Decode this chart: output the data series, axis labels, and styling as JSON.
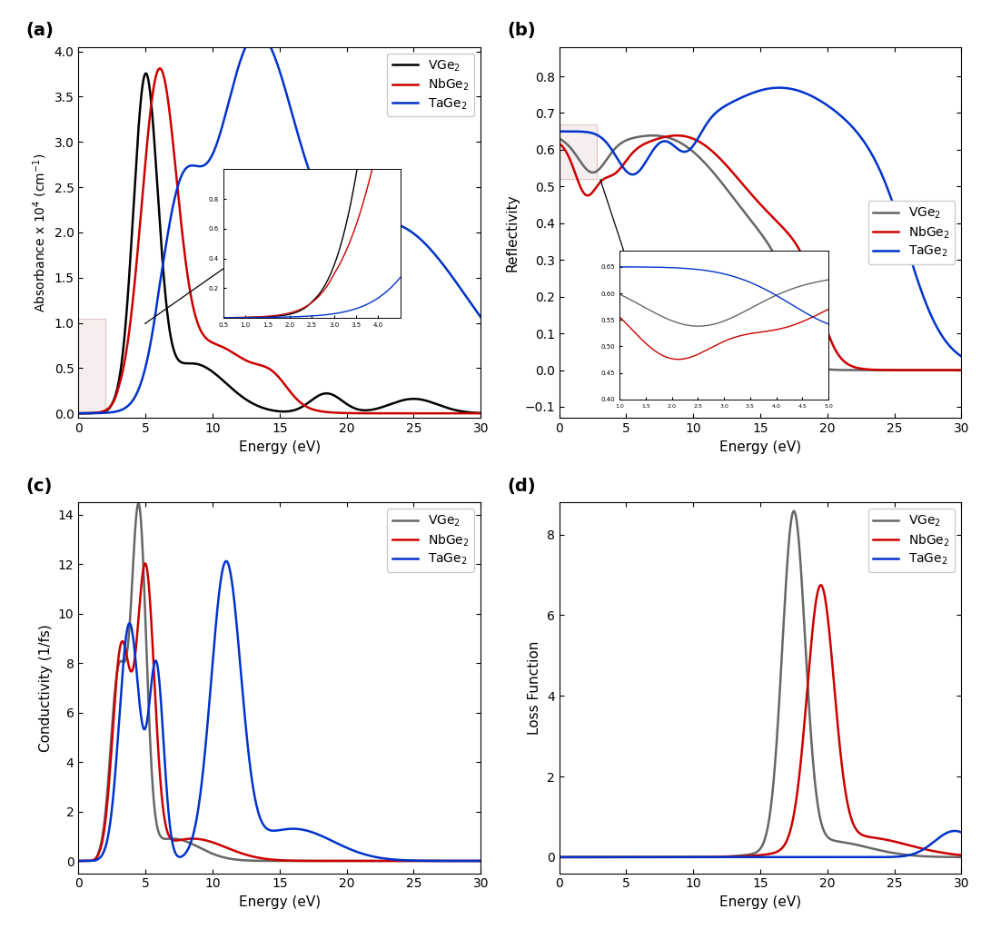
{
  "colors": {
    "V_a": "#000000",
    "Nb_a": "#cc0000",
    "Ta_a": "#0033cc",
    "V_bcd": "#666666",
    "Nb_bcd": "#cc0000",
    "Ta_bcd": "#0033cc"
  },
  "legend_labels": [
    "VGe$_2$",
    "NbGe$_2$",
    "TaGe$_2$"
  ],
  "panel_a": {
    "ylabel": "Absorbance x 10$^4$ (cm$^{-1}$)",
    "xlabel": "Energy (eV)",
    "xlim": [
      0,
      30
    ],
    "yticks": [
      0.0,
      0.5,
      1.0,
      1.5,
      2.0,
      2.5,
      3.0,
      3.5,
      4.0
    ]
  },
  "panel_b": {
    "ylabel": "Reflectivity",
    "xlabel": "Energy (eV)",
    "xlim": [
      0,
      30
    ],
    "yticks": [
      -0.1,
      0.0,
      0.1,
      0.2,
      0.3,
      0.4,
      0.5,
      0.6,
      0.7,
      0.8
    ]
  },
  "panel_c": {
    "ylabel": "Conductivity (1/fs)",
    "xlabel": "Energy (eV)",
    "xlim": [
      0,
      30
    ],
    "yticks": [
      0,
      2,
      4,
      6,
      8,
      10,
      12,
      14
    ]
  },
  "panel_d": {
    "ylabel": "Loss Function",
    "xlabel": "Energy (eV)",
    "xlim": [
      0,
      30
    ],
    "yticks": [
      0,
      2,
      4,
      6,
      8
    ]
  }
}
